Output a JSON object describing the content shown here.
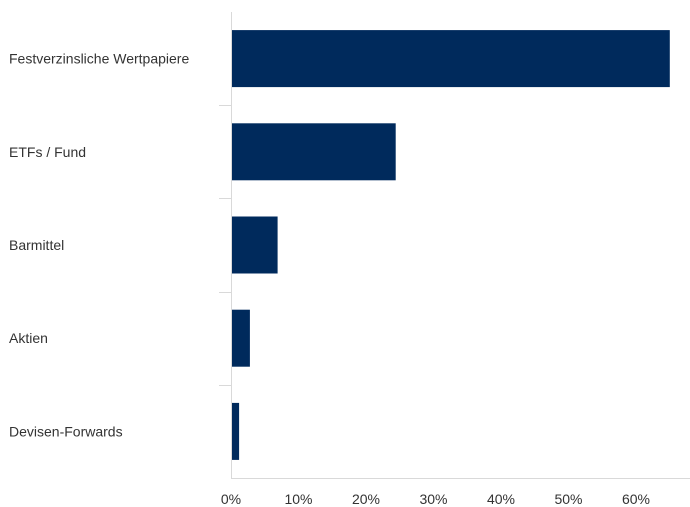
{
  "chart_data": {
    "type": "bar",
    "orientation": "horizontal",
    "title": "",
    "xlabel": "",
    "ylabel": "",
    "categories": [
      "Festverzinsliche Wertpapiere",
      "ETFs / Fund",
      "Barmittel",
      "Aktien",
      "Devisen-Forwards"
    ],
    "values": [
      65.0,
      24.4,
      6.9,
      2.8,
      1.2
    ],
    "xlim": [
      0,
      68
    ],
    "xticks": [
      0,
      10,
      20,
      30,
      40,
      50,
      60
    ],
    "xtick_labels": [
      "0%",
      "10%",
      "20%",
      "30%",
      "40%",
      "50%",
      "60%"
    ],
    "bar_color": "#002a5c",
    "axis_color": "#d9d9d9",
    "grid": false,
    "legend": "none"
  }
}
